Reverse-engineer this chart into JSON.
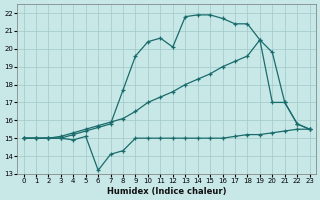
{
  "xlabel": "Humidex (Indice chaleur)",
  "bg_color": "#c8e8e8",
  "line_color": "#1a6b6b",
  "grid_color": "#a0c8c8",
  "xlim": [
    -0.5,
    23.5
  ],
  "ylim": [
    13,
    22.5
  ],
  "yticks": [
    13,
    14,
    15,
    16,
    17,
    18,
    19,
    20,
    21,
    22
  ],
  "xticks": [
    0,
    1,
    2,
    3,
    4,
    5,
    6,
    7,
    8,
    9,
    10,
    11,
    12,
    13,
    14,
    15,
    16,
    17,
    18,
    19,
    20,
    21,
    22,
    23
  ],
  "line1_x": [
    0,
    1,
    2,
    3,
    4,
    5,
    6,
    7,
    8,
    9,
    10,
    11,
    12,
    13,
    14,
    15,
    16,
    17,
    18,
    19,
    20,
    21,
    22,
    23
  ],
  "line1_y": [
    15,
    15,
    15,
    15,
    14.9,
    15.1,
    13.2,
    14.1,
    14.3,
    15.0,
    15.0,
    15.0,
    15.0,
    15.0,
    15.0,
    15.0,
    15.0,
    15.1,
    15.2,
    15.2,
    15.3,
    15.4,
    15.5,
    15.5
  ],
  "line2_x": [
    0,
    1,
    2,
    3,
    4,
    5,
    6,
    7,
    8,
    9,
    10,
    11,
    12,
    13,
    14,
    15,
    16,
    17,
    18,
    19,
    20,
    21,
    22,
    23
  ],
  "line2_y": [
    15,
    15,
    15,
    15,
    15.2,
    15.4,
    15.6,
    15.8,
    17.7,
    19.6,
    20.4,
    20.6,
    20.1,
    21.8,
    21.9,
    21.9,
    21.7,
    21.4,
    21.4,
    20.5,
    19.8,
    17.0,
    15.8,
    15.5
  ],
  "line3_x": [
    0,
    1,
    2,
    3,
    4,
    5,
    6,
    7,
    8,
    9,
    10,
    11,
    12,
    13,
    14,
    15,
    16,
    17,
    18,
    19,
    20,
    21,
    22,
    23
  ],
  "line3_y": [
    15,
    15,
    15,
    15.1,
    15.3,
    15.5,
    15.7,
    15.9,
    16.1,
    16.5,
    17.0,
    17.3,
    17.6,
    18.0,
    18.3,
    18.6,
    19.0,
    19.3,
    19.6,
    20.5,
    17.0,
    17.0,
    15.8,
    15.5
  ]
}
